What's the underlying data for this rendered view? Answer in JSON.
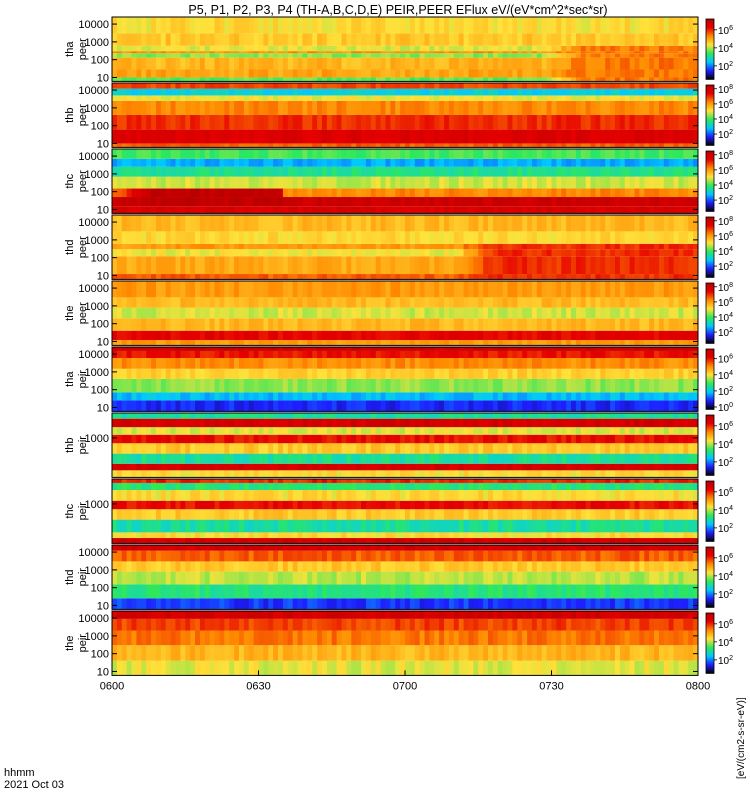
{
  "title": "P5, P1, P2, P3, P4 (TH-A,B,C,D,E) PEIR,PEER EFlux eV/(eV*cm^2*sec*sr)",
  "colorbar_caption": "[eV/(cm2-s-sr-eV)]",
  "x_axis": {
    "ticks": [
      "0600",
      "0630",
      "0700",
      "0730",
      "0800"
    ],
    "tick_minutes": [
      0,
      30,
      60,
      90,
      120
    ],
    "range_minutes": [
      0,
      120
    ],
    "corner_label_1": "hhmm",
    "corner_label_2": "2021 Oct 03"
  },
  "colors": {
    "scale": [
      "#000000",
      "#1e1eff",
      "#00c8ff",
      "#2ee85a",
      "#ffe23a",
      "#ff8a00",
      "#e60000",
      "#b80000"
    ],
    "gap": "#ffffff"
  },
  "chart_data": {
    "type": "heatmap",
    "title": "P5, P1, P2, P3, P4 (TH-A,B,C,D,E) PEIR,PEER EFlux eV/(eV*cm^2*sec*sr)",
    "x_range_minutes": [
      0,
      120
    ],
    "y_scale": "log",
    "panels": [
      {
        "name": "tha peer",
        "y_ticks": [
          "10",
          "100",
          "1000",
          "10000"
        ],
        "y_tick_values": [
          10,
          100,
          1000,
          10000
        ],
        "ylim": [
          6,
          25000
        ],
        "cb_ticks": [
          "10^2",
          "10^4",
          "10^6"
        ],
        "cb_range_exp": [
          0.5,
          7.2
        ],
        "bands": [
          [
            6,
            10,
            3.6
          ],
          [
            10,
            28,
            5.0
          ],
          [
            28,
            130,
            4.8
          ],
          [
            130,
            230,
            3.8
          ],
          [
            230,
            300,
            5.2
          ],
          [
            300,
            600,
            4.2
          ],
          [
            600,
            3000,
            4.6
          ],
          [
            3000,
            25000,
            4.4
          ]
        ],
        "events": [
          {
            "t0": 88,
            "t1": 120,
            "emin": 6,
            "emax": 600,
            "level": 5.4
          }
        ]
      },
      {
        "name": "thb peer",
        "y_ticks": [
          "10",
          "100",
          "1000",
          "10000"
        ],
        "y_tick_values": [
          10,
          100,
          1000,
          10000
        ],
        "ylim": [
          6,
          25000
        ],
        "cb_ticks": [
          "10^2",
          "10^4",
          "10^6",
          "10^8"
        ],
        "cb_range_exp": [
          0.5,
          8.5
        ],
        "bands": [
          [
            6,
            10,
            6.6
          ],
          [
            10,
            60,
            7.6
          ],
          [
            60,
            400,
            7.0
          ],
          [
            400,
            2500,
            6.2
          ],
          [
            2500,
            5000,
            5.0
          ],
          [
            5000,
            12000,
            3.0
          ],
          [
            12000,
            25000,
            6.8
          ]
        ],
        "events": []
      },
      {
        "name": "thc peer",
        "y_ticks": [
          "10",
          "100",
          "1000",
          "10000"
        ],
        "y_tick_values": [
          10,
          100,
          1000,
          10000
        ],
        "ylim": [
          6,
          25000
        ],
        "cb_ticks": [
          "10^2",
          "10^4",
          "10^6",
          "10^8"
        ],
        "cb_range_exp": [
          0.5,
          8.5
        ],
        "bands": [
          [
            6,
            15,
            7.6
          ],
          [
            15,
            50,
            8.0
          ],
          [
            50,
            150,
            6.2
          ],
          [
            150,
            700,
            4.8
          ],
          [
            700,
            2500,
            3.6
          ],
          [
            2500,
            7000,
            2.6
          ],
          [
            7000,
            25000,
            4.0
          ]
        ],
        "events": [
          {
            "t0": 0,
            "t1": 35,
            "emin": 15,
            "emax": 60,
            "level": 8.3
          }
        ]
      },
      {
        "name": "thd peer",
        "y_ticks": [
          "10",
          "100",
          "1000",
          "10000"
        ],
        "y_tick_values": [
          10,
          100,
          1000,
          10000
        ],
        "ylim": [
          6,
          25000
        ],
        "cb_ticks": [
          "10^2",
          "10^4",
          "10^6",
          "10^8"
        ],
        "cb_range_exp": [
          0.5,
          8.5
        ],
        "bands": [
          [
            6,
            12,
            6.6
          ],
          [
            12,
            120,
            5.8
          ],
          [
            120,
            300,
            5.0
          ],
          [
            300,
            600,
            6.0
          ],
          [
            600,
            3000,
            5.2
          ],
          [
            3000,
            25000,
            5.6
          ]
        ],
        "events": [
          {
            "t0": 70,
            "t1": 120,
            "emin": 6,
            "emax": 400,
            "level": 7.0
          }
        ]
      },
      {
        "name": "the peer",
        "y_ticks": [
          "10",
          "100",
          "1000",
          "10000"
        ],
        "y_tick_values": [
          10,
          100,
          1000,
          10000
        ],
        "ylim": [
          6,
          25000
        ],
        "cb_ticks": [
          "10^2",
          "10^4",
          "10^6",
          "10^8"
        ],
        "cb_range_exp": [
          0.5,
          8.5
        ],
        "bands": [
          [
            6,
            12,
            6.0
          ],
          [
            12,
            40,
            7.4
          ],
          [
            40,
            200,
            5.6
          ],
          [
            200,
            800,
            4.8
          ],
          [
            800,
            3000,
            5.6
          ],
          [
            3000,
            25000,
            6.0
          ]
        ],
        "events": []
      },
      {
        "name": "tha peir",
        "y_ticks": [
          "10",
          "100",
          "1000",
          "10000"
        ],
        "y_tick_values": [
          10,
          100,
          1000,
          10000
        ],
        "ylim": [
          6,
          25000
        ],
        "cb_ticks": [
          "10^0",
          "10^2",
          "10^4",
          "10^6"
        ],
        "cb_range_exp": [
          -0.3,
          7.2
        ],
        "bands": [
          [
            6,
            25,
            0.8
          ],
          [
            25,
            70,
            1.8
          ],
          [
            70,
            400,
            3.4
          ],
          [
            400,
            1500,
            4.2
          ],
          [
            1500,
            6000,
            5.0
          ],
          [
            6000,
            15000,
            6.0
          ],
          [
            15000,
            25000,
            6.8
          ]
        ],
        "events": []
      },
      {
        "name": "thb peir",
        "y_ticks": [
          "1000"
        ],
        "y_tick_values": [
          1000
        ],
        "ylim": [
          6,
          25000
        ],
        "cb_ticks": [
          "10^2",
          "10^4",
          "10^6"
        ],
        "cb_range_exp": [
          0.5,
          7.2
        ],
        "bands": [
          [
            6,
            15,
            4.4
          ],
          [
            15,
            35,
            6.6
          ],
          [
            35,
            130,
            3.0
          ],
          [
            130,
            500,
            4.6
          ],
          [
            500,
            1500,
            6.2
          ],
          [
            1500,
            4000,
            4.2
          ],
          [
            4000,
            12000,
            6.6
          ],
          [
            12000,
            25000,
            3.0
          ]
        ],
        "events": []
      },
      {
        "name": "thc peir",
        "y_ticks": [
          "1000"
        ],
        "y_tick_values": [
          1000
        ],
        "ylim": [
          6,
          25000
        ],
        "cb_ticks": [
          "10^2",
          "10^4",
          "10^6"
        ],
        "cb_range_exp": [
          0.5,
          7.2
        ],
        "bands": [
          [
            6,
            12,
            6.6
          ],
          [
            12,
            25,
            4.4
          ],
          [
            25,
            130,
            3.0
          ],
          [
            130,
            500,
            4.6
          ],
          [
            500,
            1500,
            6.2
          ],
          [
            1500,
            6000,
            4.4
          ],
          [
            6000,
            15000,
            3.2
          ],
          [
            15000,
            25000,
            6.0
          ]
        ],
        "events": []
      },
      {
        "name": "thd peir",
        "y_ticks": [
          "10",
          "100",
          "1000",
          "10000"
        ],
        "y_tick_values": [
          10,
          100,
          1000,
          10000
        ],
        "ylim": [
          6,
          25000
        ],
        "cb_ticks": [
          "10^2",
          "10^4",
          "10^6"
        ],
        "cb_range_exp": [
          0.5,
          7.2
        ],
        "bands": [
          [
            6,
            25,
            1.6
          ],
          [
            25,
            150,
            3.2
          ],
          [
            150,
            800,
            4.0
          ],
          [
            800,
            3000,
            4.6
          ],
          [
            3000,
            12000,
            5.6
          ],
          [
            12000,
            25000,
            6.6
          ]
        ],
        "events": []
      },
      {
        "name": "the peir",
        "y_ticks": [
          "10",
          "100",
          "1000",
          "10000"
        ],
        "y_tick_values": [
          10,
          100,
          1000,
          10000
        ],
        "ylim": [
          6,
          25000
        ],
        "cb_ticks": [
          "10^2",
          "10^4",
          "10^6"
        ],
        "cb_range_exp": [
          0.5,
          7.2
        ],
        "bands": [
          [
            6,
            40,
            4.2
          ],
          [
            40,
            300,
            4.8
          ],
          [
            300,
            2000,
            5.4
          ],
          [
            2000,
            9000,
            5.8
          ],
          [
            9000,
            25000,
            6.6
          ]
        ],
        "events": []
      }
    ]
  }
}
